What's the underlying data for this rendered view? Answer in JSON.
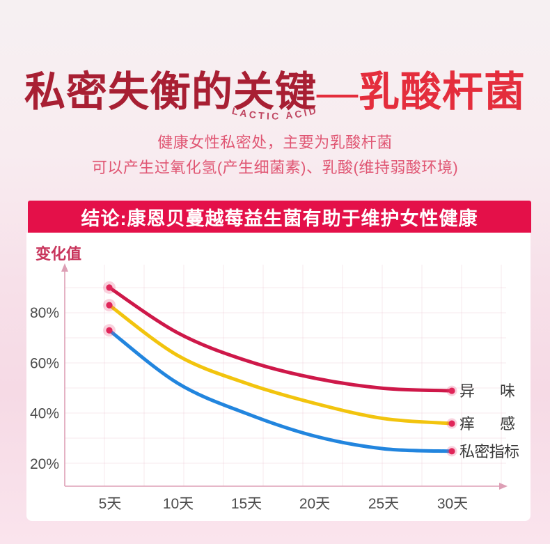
{
  "hero": {
    "title_dark": "私密失衡的关键",
    "title_accent": "—乳酸杆菌",
    "subtitle_en": "LACTIC ACID",
    "intro_line1": "健康女性私密处，主要为乳酸杆菌",
    "intro_line2": "可以产生过氧化氢(产生细菌素)、乳酸(维持弱酸环境)",
    "banner_conclusion": "结论:康恩贝蔓越莓益生菌有助于维护女性健康"
  },
  "colors": {
    "title_dark": "#a81f33",
    "title_accent": "#e42d3c",
    "banner_bg": "#e41049",
    "banner_text": "#ffffff",
    "intro_text": "#e05673",
    "axis_pink": "#dd9fb5",
    "tick_text": "#4c4c4c",
    "legend_text": "#383838",
    "ylabel_text": "#c8355c",
    "dot_core": "#e02559",
    "dot_halo": "rgba(232,62,114,0.24)",
    "grid": "rgba(238,205,216,0.45)",
    "card_bg": "#ffffff"
  },
  "chart_data": {
    "type": "line",
    "title": "",
    "ylabel": "变化值",
    "xlabel": "",
    "categories": [
      "5天",
      "10天",
      "15天",
      "20天",
      "25天",
      "30天"
    ],
    "x_days": [
      5,
      10,
      15,
      20,
      25,
      30
    ],
    "y_tick_labels": [
      "80%",
      "60%",
      "40%",
      "20%"
    ],
    "y_tick_values": [
      80,
      60,
      40,
      20
    ],
    "ylim": [
      0,
      100
    ],
    "grid": true,
    "legend_position": "right-of-line-end",
    "series": [
      {
        "name": "异味",
        "key": "odor",
        "color": "#ce1849",
        "values": [
          90,
          72,
          61,
          54,
          50,
          49
        ]
      },
      {
        "name": "痒感",
        "key": "itch",
        "color": "#f2c40e",
        "values": [
          83,
          63,
          52,
          44,
          38,
          36
        ]
      },
      {
        "name": "私密指标",
        "key": "private-index",
        "color": "#2285de",
        "values": [
          73,
          52,
          40,
          31,
          26,
          25
        ]
      }
    ]
  }
}
